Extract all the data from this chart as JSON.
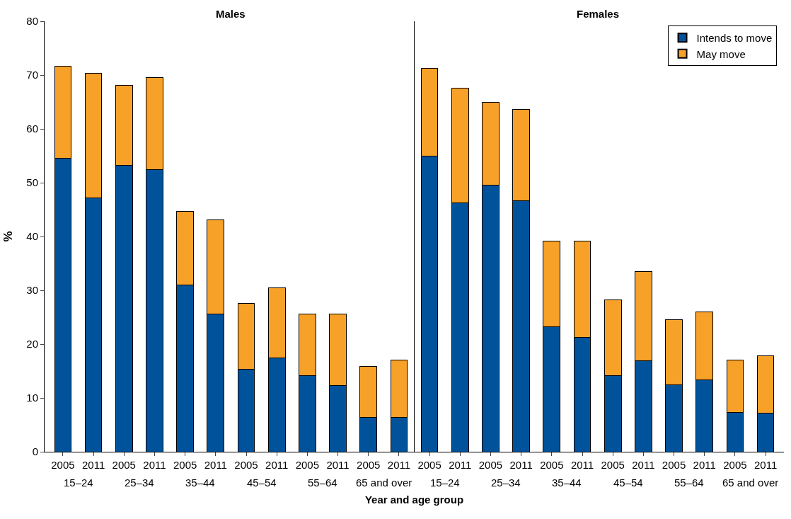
{
  "chart_data": {
    "type": "bar",
    "stacked": true,
    "xlabel": "Year and age group",
    "ylabel": "%",
    "categories": [
      "2005",
      "2011",
      "2005",
      "2011",
      "2005",
      "2011",
      "2005",
      "2011",
      "2005",
      "2011",
      "2005",
      "2011",
      "2005",
      "2011",
      "2005",
      "2011",
      "2005",
      "2011",
      "2005",
      "2011",
      "2005",
      "2011",
      "2005",
      "2011"
    ],
    "annotations": [
      "Males",
      "Females",
      "15–24",
      "25–34",
      "35–44",
      "45–54",
      "55–64",
      "65 and over",
      "15–24",
      "25–34",
      "35–44",
      "45–54",
      "55–64",
      "65 and over"
    ],
    "series": [
      {
        "name": "Intends to move",
        "color": "#00539b",
        "values": [
          54.5,
          47.2,
          53.2,
          52.4,
          31.0,
          25.6,
          15.3,
          17.4,
          14.1,
          12.3,
          6.4,
          6.4,
          54.9,
          46.3,
          49.5,
          46.7,
          23.2,
          21.2,
          14.2,
          16.9,
          12.4,
          13.3,
          7.3,
          7.2
        ]
      },
      {
        "name": "May move",
        "color": "#f7a129",
        "values": [
          17.2,
          23.1,
          14.9,
          17.2,
          13.7,
          17.5,
          12.3,
          13.0,
          11.5,
          13.3,
          9.5,
          10.7,
          16.3,
          21.3,
          15.4,
          16.9,
          16.0,
          18.0,
          14.0,
          16.6,
          12.2,
          12.7,
          9.8,
          10.6
        ]
      }
    ],
    "ylim": [
      0,
      80
    ],
    "yticks": [
      0,
      10,
      20,
      30,
      40,
      50,
      60,
      70,
      80
    ],
    "legend": "top right"
  }
}
